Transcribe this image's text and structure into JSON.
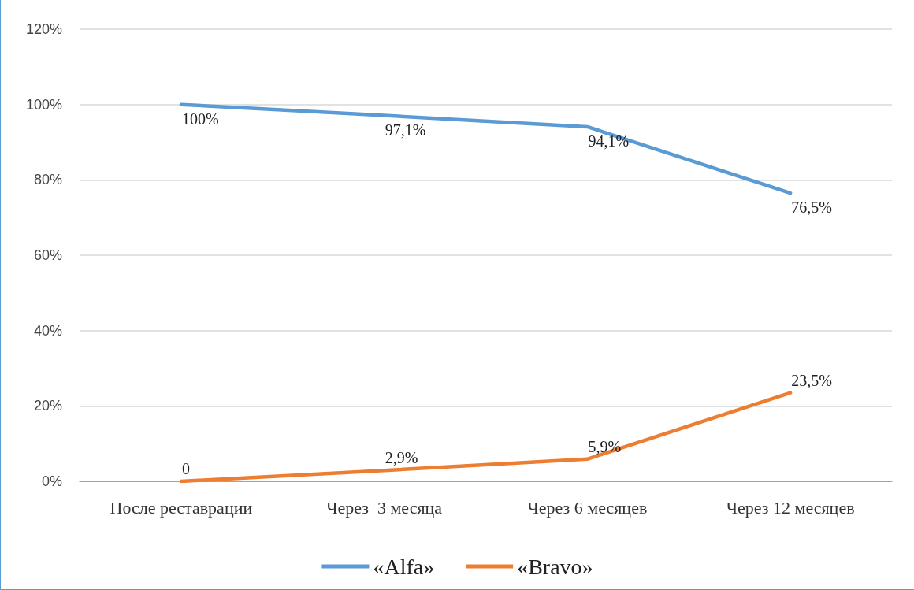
{
  "chart_data": {
    "type": "line",
    "categories": [
      "После реставрации",
      "Через  3 месяца",
      "Через 6 месяцев",
      "Через 12 месяцев"
    ],
    "series": [
      {
        "name": "«Alfa»",
        "color": "#5b9bd5",
        "values": [
          100,
          97.1,
          94.1,
          76.5
        ],
        "value_labels": [
          "100%",
          "97,1%",
          "94,1%",
          "76,5%"
        ]
      },
      {
        "name": "«Bravo»",
        "color": "#ed7d31",
        "values": [
          0,
          2.9,
          5.9,
          23.5
        ],
        "value_labels": [
          "0",
          "2,9%",
          "5,9%",
          "23,5%"
        ]
      }
    ],
    "ylim": [
      0,
      120
    ],
    "yticks": [
      {
        "value": 0,
        "label": "0%"
      },
      {
        "value": 20,
        "label": "20%"
      },
      {
        "value": 40,
        "label": "40%"
      },
      {
        "value": 60,
        "label": "60%"
      },
      {
        "value": 80,
        "label": "80%"
      },
      {
        "value": 100,
        "label": "100%"
      },
      {
        "value": 120,
        "label": "120%"
      }
    ],
    "grid": "y",
    "legend": "bottom",
    "marker": "none",
    "line_style": "solid"
  }
}
